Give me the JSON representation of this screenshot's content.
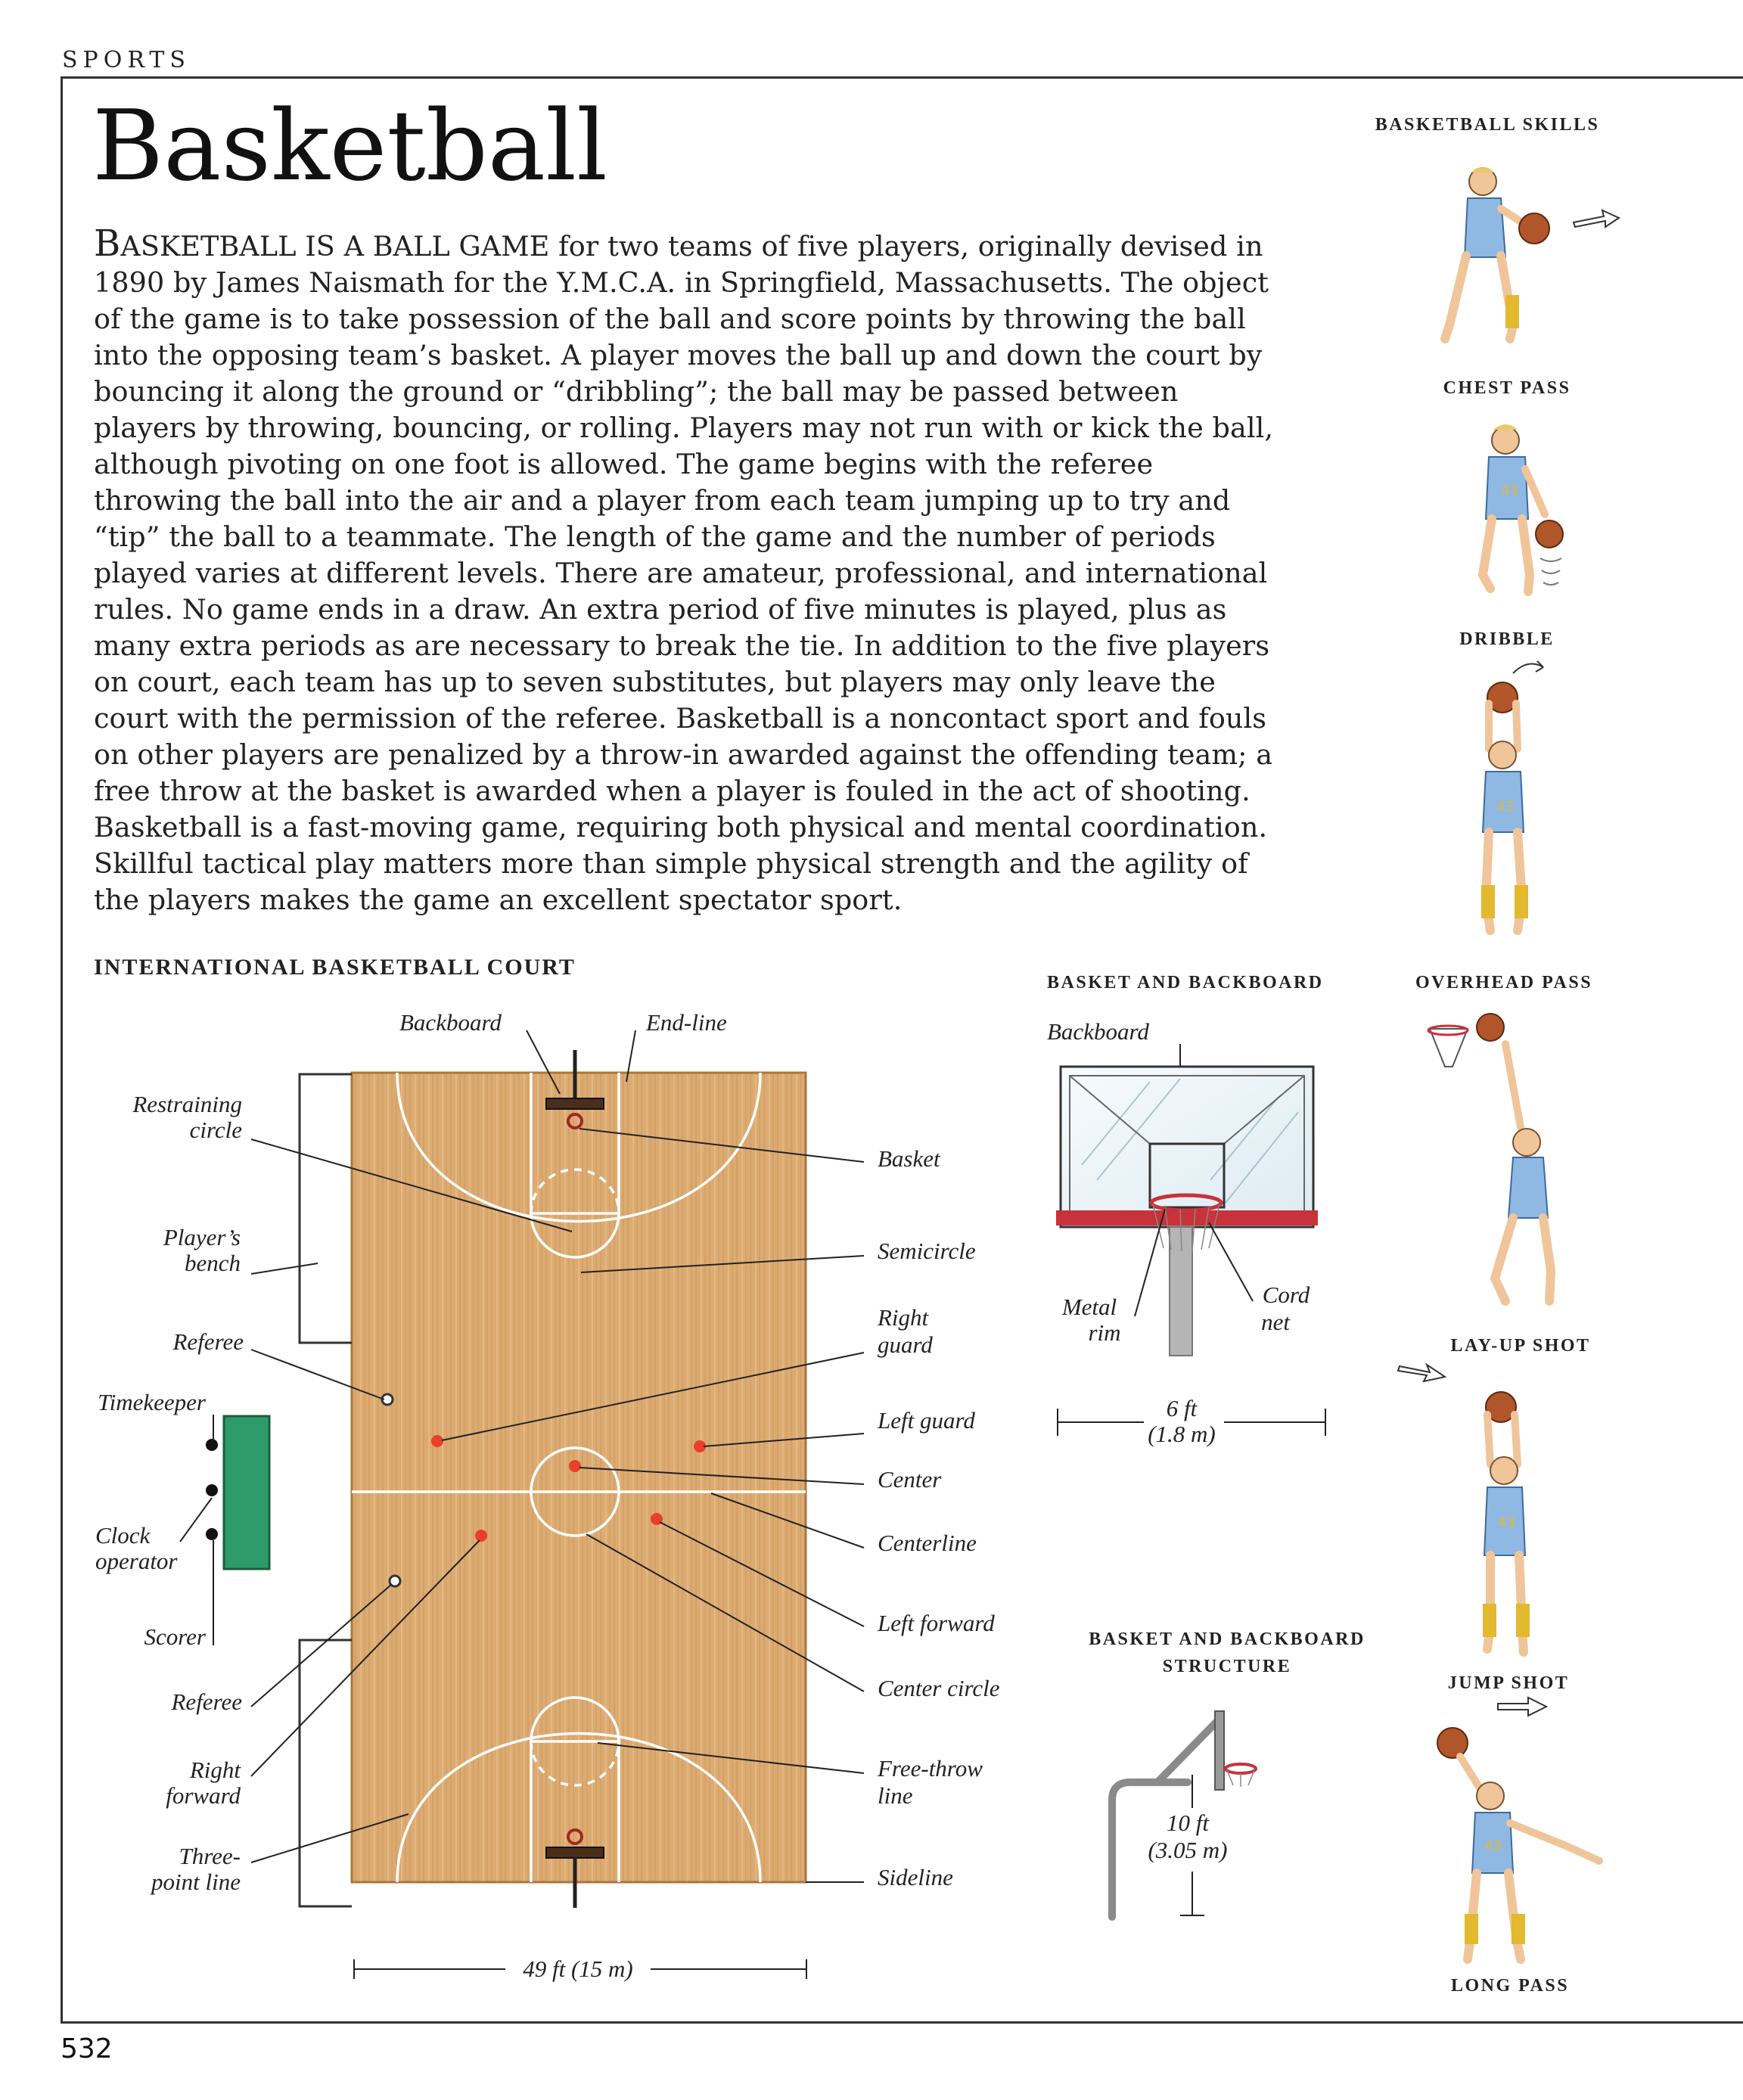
{
  "section": "SPORTS",
  "page_number": "532",
  "title": "Basketball",
  "intro": {
    "lead_first": "B",
    "lead_rest": "ASKETBALL IS A BALL GAME",
    "body": " for two teams of five players, originally devised in 1890 by James Naismath for the Y.M.C.A. in Springfield, Massachusetts. The object of the game is to take possession of the ball and score points by throwing the ball into the opposing team’s basket. A player moves the ball up and down the court by bouncing it along the ground or “dribbling”; the ball may be passed between players by throwing, bouncing, or rolling. Players may not run with or kick the ball, although pivoting on one foot is allowed. The game begins with the referee throwing the ball into the air and a player from each team jumping up to try and “tip” the ball to a teammate. The length of the game and the number of periods played varies at different levels. There are amateur, professional, and international rules. No game ends in a draw. An extra period of five minutes is played, plus as many extra periods as are necessary to break the tie. In addition to the five players on court, each team has up to seven substitutes, but players may only leave the court with the permission of the referee. Basketball is a noncontact sport and fouls on other players are penalized by a throw-in awarded against the offending team; a free throw at the basket is awarded when a player is fouled in the act of shooting. Basketball is a fast-moving game, requiring both physical and mental coordination. Skillful tactical play matters more than simple physical strength and the agility of the players makes the game an excellent spectator sport."
  },
  "court": {
    "heading": "INTERNATIONAL BASKETBALL COURT",
    "labels": {
      "backboard": "Backboard",
      "end_line": "End-line",
      "restraining_circle_1": "Restraining",
      "restraining_circle_2": "circle",
      "players_bench_1": "Player’s",
      "players_bench_2": "bench",
      "referee_top": "Referee",
      "timekeeper": "Timekeeper",
      "clock_operator_1": "Clock",
      "clock_operator_2": "operator",
      "scorer": "Scorer",
      "referee_bottom": "Referee",
      "right_forward_1": "Right",
      "right_forward_2": "forward",
      "three_point_1": "Three-",
      "three_point_2": "point line",
      "basket": "Basket",
      "semicircle": "Semicircle",
      "right_guard_1": "Right",
      "right_guard_2": "guard",
      "left_guard": "Left guard",
      "center": "Center",
      "centerline": "Centerline",
      "left_forward": "Left forward",
      "center_circle": "Center circle",
      "free_throw_1": "Free-throw",
      "free_throw_2": "line",
      "sideline": "Sideline"
    },
    "width_dimension": "49 ft (15 m)"
  },
  "backboard_panel": {
    "heading": "BASKET AND BACKBOARD",
    "backboard": "Backboard",
    "metal_rim_1": "Metal",
    "metal_rim_2": "rim",
    "cord_net_1": "Cord",
    "cord_net_2": "net",
    "dim_1": "6 ft",
    "dim_2": "(1.8 m)"
  },
  "structure_panel": {
    "heading_1": "BASKET AND BACKBOARD",
    "heading_2": "STRUCTURE",
    "dim_1": "10 ft",
    "dim_2": "(3.05 m)"
  },
  "skills": {
    "heading": "BASKETBALL SKILLS",
    "items": [
      "CHEST PASS",
      "DRIBBLE",
      "OVERHEAD PASS",
      "LAY-UP SHOT",
      "JUMP SHOT",
      "LONG PASS"
    ]
  },
  "colors": {
    "court_wood": "#dcab72",
    "court_wood_dark": "#c48a4f",
    "player_dot": "#e8402a",
    "scoreboard": "#2e9b6a",
    "backboard_red": "#c8323a",
    "jersey": "#8fb9e2",
    "jersey_trim": "#e2b92f",
    "ball": "#b0562a"
  }
}
